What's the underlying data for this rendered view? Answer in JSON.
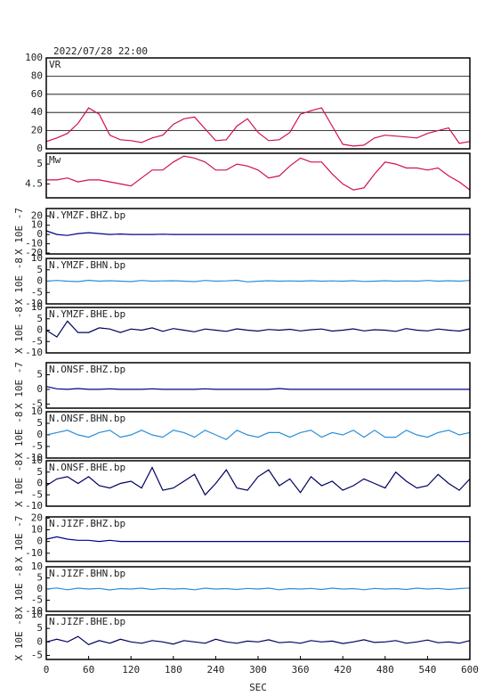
{
  "chart_data": [
    {
      "type": "line",
      "title": "2022/07/28 22:00",
      "label": "VR",
      "color": "#d0104c",
      "grid": true,
      "x": [
        0,
        15,
        30,
        45,
        60,
        75,
        90,
        105,
        120,
        135,
        150,
        165,
        180,
        195,
        210,
        225,
        240,
        255,
        270,
        285,
        300,
        315,
        330,
        345,
        360,
        375,
        390,
        405,
        420,
        435,
        450,
        465,
        480,
        495,
        510,
        525,
        540,
        555,
        570,
        585,
        600
      ],
      "values": [
        8,
        12,
        17,
        28,
        45,
        38,
        15,
        10,
        9,
        7,
        12,
        15,
        27,
        33,
        35,
        22,
        9,
        10,
        25,
        33,
        18,
        9,
        10,
        18,
        38,
        42,
        45,
        25,
        5,
        3,
        4,
        12,
        15,
        14,
        13,
        12,
        17,
        20,
        23,
        6,
        8
      ],
      "xlim": [
        0,
        600
      ],
      "ylim": [
        0,
        100
      ],
      "yticks": [
        0,
        20,
        40,
        60,
        80,
        100
      ]
    },
    {
      "type": "line",
      "label": "Mw",
      "color": "#d0104c",
      "x": [
        0,
        15,
        30,
        45,
        60,
        75,
        90,
        105,
        120,
        135,
        150,
        165,
        180,
        195,
        210,
        225,
        240,
        255,
        270,
        285,
        300,
        315,
        330,
        345,
        360,
        375,
        390,
        405,
        420,
        435,
        450,
        465,
        480,
        495,
        510,
        525,
        540,
        555,
        570,
        585,
        600
      ],
      "values": [
        4.6,
        4.6,
        4.65,
        4.55,
        4.6,
        4.6,
        4.55,
        4.5,
        4.45,
        4.65,
        4.85,
        4.85,
        5.05,
        5.2,
        5.15,
        5.05,
        4.85,
        4.85,
        5.0,
        4.95,
        4.85,
        4.65,
        4.7,
        4.95,
        5.15,
        5.05,
        5.05,
        4.75,
        4.5,
        4.35,
        4.4,
        4.75,
        5.05,
        5.0,
        4.9,
        4.9,
        4.85,
        4.9,
        4.7,
        4.55,
        4.35
      ],
      "xlim": [
        0,
        600
      ],
      "ylim": [
        4.15,
        5.27
      ],
      "yticks": [
        4.5,
        5.0
      ]
    },
    {
      "type": "line",
      "label": "N.YMZF.BHZ.bp",
      "ylabel": "X 10E -7",
      "color": "#00008b",
      "x": [
        0,
        15,
        30,
        45,
        60,
        75,
        90,
        105,
        120,
        135,
        150,
        165,
        180,
        195,
        210,
        225,
        240,
        255,
        270,
        285,
        300,
        315,
        330,
        345,
        360,
        375,
        390,
        405,
        420,
        435,
        450,
        465,
        480,
        495,
        510,
        525,
        540,
        555,
        570,
        585,
        600
      ],
      "values": [
        4,
        0,
        -1,
        1,
        2,
        1,
        0,
        0.5,
        0,
        0,
        0,
        0.3,
        0,
        0,
        0,
        0,
        0,
        0,
        0,
        0,
        0,
        0,
        0,
        0,
        0,
        0,
        0,
        0,
        0,
        0,
        0,
        0,
        0,
        0,
        0,
        0,
        0,
        0,
        0,
        0,
        0
      ],
      "xlim": [
        0,
        600
      ],
      "ylim": [
        -21,
        28
      ],
      "yticks": [
        -20,
        -10,
        0,
        10,
        20
      ]
    },
    {
      "type": "line",
      "label": "N.YMZF.BHN.bp",
      "ylabel": "X 10E -8",
      "color": "#2a8fd8",
      "x": [
        0,
        15,
        30,
        45,
        60,
        75,
        90,
        105,
        120,
        135,
        150,
        165,
        180,
        195,
        210,
        225,
        240,
        255,
        270,
        285,
        300,
        315,
        330,
        345,
        360,
        375,
        390,
        405,
        420,
        435,
        450,
        465,
        480,
        495,
        510,
        525,
        540,
        555,
        570,
        585,
        600
      ],
      "values": [
        0,
        0.3,
        0,
        -0.2,
        0.4,
        0,
        0.2,
        0,
        -0.2,
        0.3,
        0,
        0.1,
        0.2,
        0,
        -0.2,
        0.3,
        0,
        0.1,
        0.4,
        -0.3,
        0,
        0.2,
        0,
        0.1,
        0,
        0.2,
        0,
        0.1,
        0,
        0.2,
        -0.1,
        0,
        0.2,
        0,
        0.1,
        0,
        0.3,
        0,
        0.2,
        0,
        0.3
      ],
      "xlim": [
        0,
        600
      ],
      "ylim": [
        -10,
        10
      ],
      "yticks": [
        -10,
        -5,
        0,
        5,
        10
      ]
    },
    {
      "type": "line",
      "label": "N.YMZF.BHE.bp",
      "ylabel": "X 10E -8",
      "color": "#000060",
      "x": [
        0,
        15,
        30,
        45,
        60,
        75,
        90,
        105,
        120,
        135,
        150,
        165,
        180,
        195,
        210,
        225,
        240,
        255,
        270,
        285,
        300,
        315,
        330,
        345,
        360,
        375,
        390,
        405,
        420,
        435,
        450,
        465,
        480,
        495,
        510,
        525,
        540,
        555,
        570,
        585,
        600
      ],
      "values": [
        0,
        -3,
        4,
        -1,
        -1,
        1,
        0.5,
        -1,
        0.5,
        0,
        1,
        -0.5,
        0.7,
        0,
        -0.7,
        0.5,
        0,
        -0.5,
        0.6,
        0,
        -0.4,
        0.3,
        0,
        0.4,
        -0.3,
        0.2,
        0.5,
        -0.4,
        0,
        0.6,
        -0.3,
        0.2,
        0,
        -0.5,
        0.7,
        0,
        -0.3,
        0.5,
        0,
        -0.4,
        0.6
      ],
      "xlim": [
        0,
        600
      ],
      "ylim": [
        -10,
        10
      ],
      "yticks": [
        -10,
        -5,
        0,
        5,
        10
      ]
    },
    {
      "type": "line",
      "label": "N.ONSF.BHZ.bp",
      "ylabel": "X 10E -7",
      "color": "#00008b",
      "x": [
        0,
        15,
        30,
        45,
        60,
        75,
        90,
        105,
        120,
        135,
        150,
        165,
        180,
        195,
        210,
        225,
        240,
        255,
        270,
        285,
        300,
        315,
        330,
        345,
        360,
        375,
        390,
        405,
        420,
        435,
        450,
        465,
        480,
        495,
        510,
        525,
        540,
        555,
        570,
        585,
        600
      ],
      "values": [
        1,
        0.2,
        0,
        0.3,
        0,
        0,
        0.2,
        0,
        0,
        0,
        0.2,
        0,
        0,
        0,
        0,
        0.2,
        0,
        0,
        0,
        0,
        0,
        0,
        0.3,
        0,
        0,
        0,
        0,
        0,
        0,
        0,
        0,
        0,
        0,
        0,
        0,
        0,
        0,
        0,
        0,
        0,
        0
      ],
      "xlim": [
        0,
        600
      ],
      "ylim": [
        -6.4,
        9.1
      ],
      "yticks": [
        -5,
        0,
        5
      ]
    },
    {
      "type": "line",
      "label": "N.ONSF.BHN.bp",
      "ylabel": "X 10E -8",
      "color": "#2a8fd8",
      "x": [
        0,
        15,
        30,
        45,
        60,
        75,
        90,
        105,
        120,
        135,
        150,
        165,
        180,
        195,
        210,
        225,
        240,
        255,
        270,
        285,
        300,
        315,
        330,
        345,
        360,
        375,
        390,
        405,
        420,
        435,
        450,
        465,
        480,
        495,
        510,
        525,
        540,
        555,
        570,
        585,
        600
      ],
      "values": [
        0,
        1,
        2,
        0,
        -1,
        1,
        2,
        -1,
        0,
        2,
        0,
        -1,
        2,
        1,
        -1,
        2,
        0,
        -2,
        2,
        0,
        -1,
        1,
        1,
        -1,
        1,
        2,
        -1,
        1,
        0,
        2,
        -1,
        2,
        -1,
        -1,
        2,
        0,
        -1,
        1,
        2,
        0,
        1
      ],
      "xlim": [
        0,
        600
      ],
      "ylim": [
        -10,
        10
      ],
      "yticks": [
        -10,
        -5,
        0,
        5,
        10
      ]
    },
    {
      "type": "line",
      "label": "N.ONSF.BHE.bp",
      "ylabel": "X 10E -8",
      "color": "#000060",
      "x": [
        0,
        15,
        30,
        45,
        60,
        75,
        90,
        105,
        120,
        135,
        150,
        165,
        180,
        195,
        210,
        225,
        240,
        255,
        270,
        285,
        300,
        315,
        330,
        345,
        360,
        375,
        390,
        405,
        420,
        435,
        450,
        465,
        480,
        495,
        510,
        525,
        540,
        555,
        570,
        585,
        600
      ],
      "values": [
        -1,
        2,
        3,
        0,
        3,
        -1,
        -2,
        0,
        1,
        -2,
        7,
        -3,
        -2,
        1,
        4,
        -5,
        0,
        6,
        -2,
        -3,
        3,
        6,
        -1,
        2,
        -4,
        3,
        -1,
        1,
        -3,
        -1,
        2,
        0,
        -2,
        5,
        1,
        -2,
        -1,
        4,
        0,
        -3,
        2
      ],
      "xlim": [
        0,
        600
      ],
      "ylim": [
        -10,
        10
      ],
      "yticks": [
        -10,
        -5,
        0,
        5,
        10
      ]
    },
    {
      "type": "line",
      "label": "N.JIZF.BHZ.bp",
      "ylabel": "X 10E -7",
      "color": "#00008b",
      "x": [
        0,
        15,
        30,
        45,
        60,
        75,
        90,
        105,
        120,
        135,
        150,
        165,
        180,
        195,
        210,
        225,
        240,
        255,
        270,
        285,
        300,
        315,
        330,
        345,
        360,
        375,
        390,
        405,
        420,
        435,
        450,
        465,
        480,
        495,
        510,
        525,
        540,
        555,
        570,
        585,
        600
      ],
      "values": [
        2,
        4,
        2,
        1,
        1,
        0,
        1,
        0,
        0,
        0,
        0,
        0,
        0,
        0,
        0,
        0,
        0,
        0,
        0,
        0,
        0,
        0,
        0,
        0,
        0,
        0,
        0,
        0,
        0,
        0,
        0,
        0,
        0,
        0,
        0,
        0,
        0,
        0,
        0,
        0,
        0
      ],
      "xlim": [
        0,
        600
      ],
      "ylim": [
        -17,
        21
      ],
      "yticks": [
        -10,
        0,
        10,
        20
      ]
    },
    {
      "type": "line",
      "label": "N.JIZF.BHN.bp",
      "ylabel": "X 10E -8",
      "color": "#2a8fd8",
      "x": [
        0,
        15,
        30,
        45,
        60,
        75,
        90,
        105,
        120,
        135,
        150,
        165,
        180,
        195,
        210,
        225,
        240,
        255,
        270,
        285,
        300,
        315,
        330,
        345,
        360,
        375,
        390,
        405,
        420,
        435,
        450,
        465,
        480,
        495,
        510,
        525,
        540,
        555,
        570,
        585,
        600
      ],
      "values": [
        0,
        0.5,
        -0.3,
        0.4,
        0,
        0.3,
        -0.4,
        0.2,
        0,
        0.4,
        -0.2,
        0.3,
        0,
        0.2,
        -0.3,
        0.4,
        0,
        0.2,
        -0.2,
        0.3,
        0,
        0.4,
        -0.3,
        0.2,
        0,
        0.3,
        -0.2,
        0.4,
        0,
        0.2,
        -0.3,
        0.3,
        0,
        0.2,
        -0.2,
        0.4,
        0,
        0.3,
        -0.2,
        0.2,
        0.5
      ],
      "xlim": [
        0,
        600
      ],
      "ylim": [
        -10,
        10
      ],
      "yticks": [
        -10,
        -5,
        0,
        5,
        10
      ]
    },
    {
      "type": "line",
      "label": "N.JIZF.BHE.bp",
      "ylabel": "X 10E -8",
      "color": "#000060",
      "xlabel": "SEC",
      "x": [
        0,
        15,
        30,
        45,
        60,
        75,
        90,
        105,
        120,
        135,
        150,
        165,
        180,
        195,
        210,
        225,
        240,
        255,
        270,
        285,
        300,
        315,
        330,
        345,
        360,
        375,
        390,
        405,
        420,
        435,
        450,
        465,
        480,
        495,
        510,
        525,
        540,
        555,
        570,
        585,
        600
      ],
      "values": [
        0,
        1,
        0,
        2,
        -1,
        0.5,
        -0.5,
        1,
        0,
        -0.5,
        0.5,
        0,
        -0.8,
        0.5,
        0,
        -0.5,
        1,
        0,
        -0.5,
        0.3,
        0,
        0.8,
        -0.3,
        0,
        -0.5,
        0.5,
        0,
        0.3,
        -0.6,
        0,
        0.8,
        -0.2,
        0,
        0.5,
        -0.5,
        0,
        0.7,
        -0.3,
        0,
        -0.5,
        0.5
      ],
      "xlim": [
        0,
        600
      ],
      "ylim": [
        -6.5,
        10
      ],
      "yticks": [
        -5,
        0,
        5,
        10
      ],
      "xticks": [
        0,
        60,
        120,
        180,
        240,
        300,
        360,
        420,
        480,
        540,
        600
      ]
    }
  ]
}
